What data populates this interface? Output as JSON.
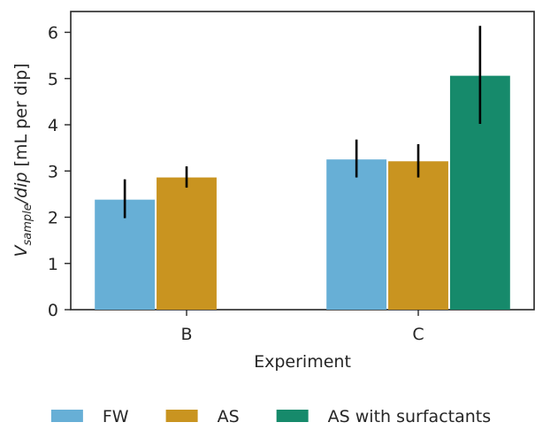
{
  "chart_data": {
    "type": "bar",
    "categories": [
      "B",
      "C"
    ],
    "xlabel": "Experiment",
    "ylabel_main": "V",
    "ylabel_sub": "sample",
    "ylabel_rest": "/dip",
    "ylabel_unit": " [mL per dip]",
    "ylim": [
      0,
      6.45
    ],
    "yticks": [
      0,
      1,
      2,
      3,
      4,
      5,
      6
    ],
    "grid": false,
    "legend_position": "bottom",
    "series": [
      {
        "name": "FW",
        "color": "#67afd6",
        "values": [
          2.38,
          3.25
        ],
        "errors": [
          [
            1.98,
            2.82
          ],
          [
            2.86,
            3.68
          ]
        ]
      },
      {
        "name": "AS",
        "color": "#c99420",
        "values": [
          2.86,
          3.21
        ],
        "errors": [
          [
            2.64,
            3.1
          ],
          [
            2.86,
            3.58
          ]
        ]
      },
      {
        "name": "AS with surfactants",
        "color": "#168a6b",
        "values": [
          null,
          5.06
        ],
        "errors": [
          null,
          [
            4.02,
            6.14
          ]
        ]
      }
    ]
  }
}
